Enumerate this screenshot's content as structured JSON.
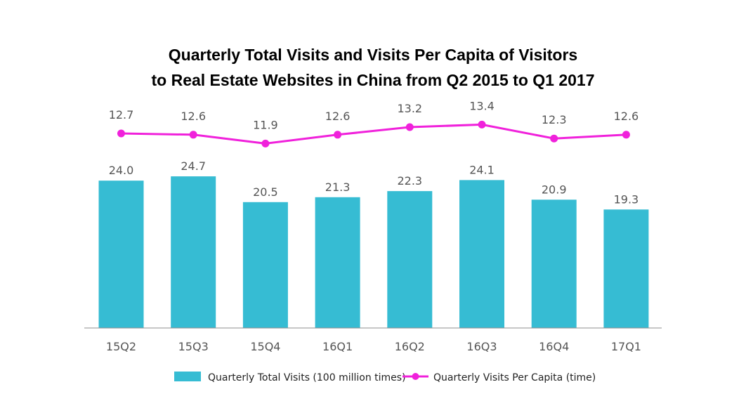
{
  "chart_data": {
    "type": "bar",
    "title_lines": [
      "Quarterly Total Visits and Visits Per Capita of Visitors",
      "to Real Estate Websites in China from Q2 2015 to Q1 2017"
    ],
    "categories": [
      "15Q2",
      "15Q3",
      "15Q4",
      "16Q1",
      "16Q2",
      "16Q3",
      "16Q4",
      "17Q1"
    ],
    "series": [
      {
        "name": "Quarterly Total Visits (100 million times)",
        "type": "bar",
        "values": [
          24.0,
          24.7,
          20.5,
          21.3,
          22.3,
          24.1,
          20.9,
          19.3
        ],
        "labels": [
          "24.0",
          "24.7",
          "20.5",
          "21.3",
          "22.3",
          "24.1",
          "20.9",
          "19.3"
        ],
        "color": "#36BCD3"
      },
      {
        "name": "Quarterly Visits Per Capita (time)",
        "type": "line",
        "values": [
          12.7,
          12.6,
          11.9,
          12.6,
          13.2,
          13.4,
          12.3,
          12.6
        ],
        "labels": [
          "12.7",
          "12.6",
          "11.9",
          "12.6",
          "13.2",
          "13.4",
          "12.3",
          "12.6"
        ],
        "color": "#F021DB"
      }
    ],
    "legend_position": "bottom",
    "grid": false
  }
}
